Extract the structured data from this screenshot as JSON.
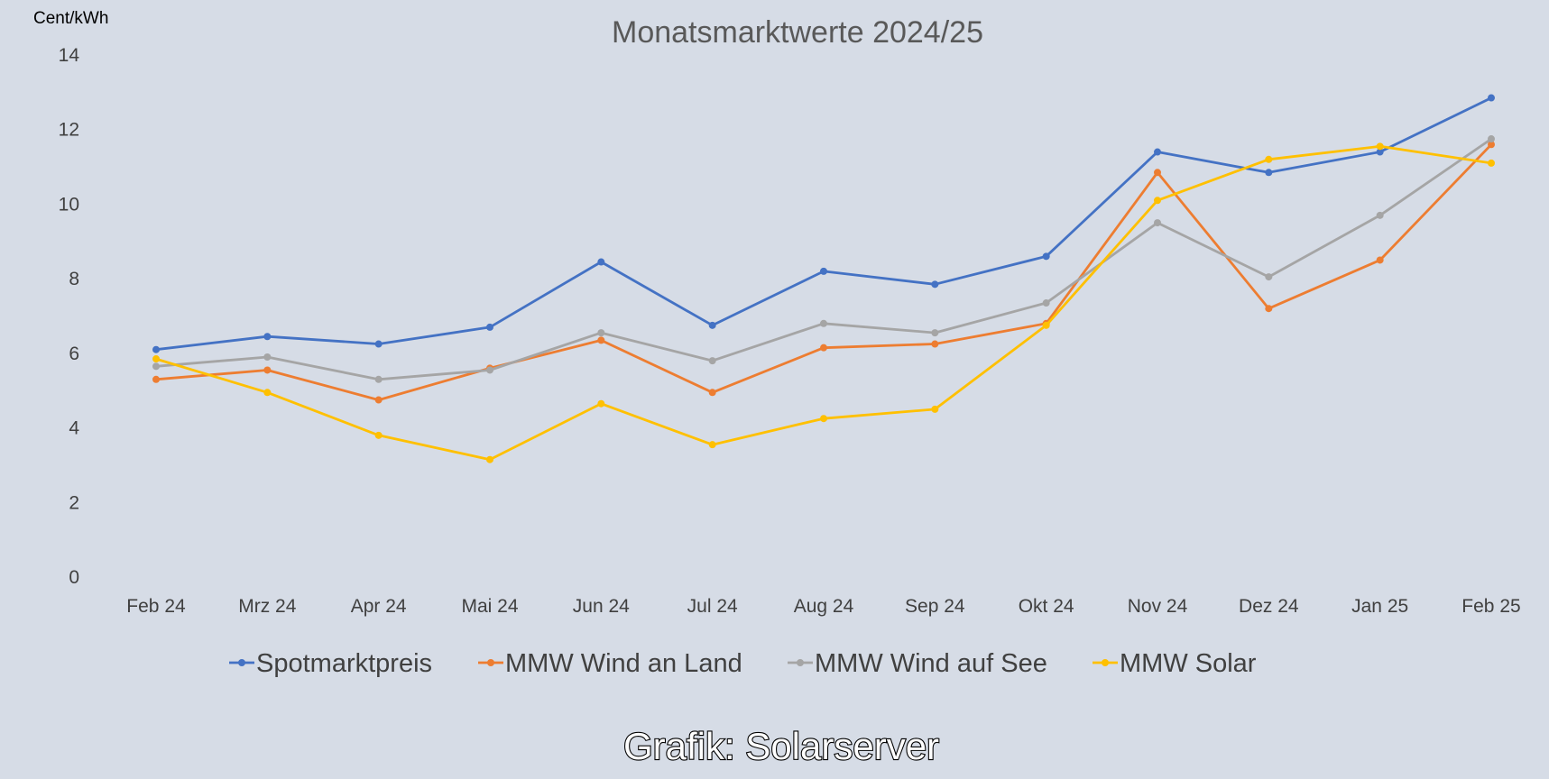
{
  "chart_data": {
    "type": "line",
    "title": "Monatsmarktwerte 2024/25",
    "unit_label": "Cent/kWh",
    "xlabel": "",
    "ylabel": "",
    "ylim": [
      0,
      14
    ],
    "yticks": [
      "0",
      "2",
      "4",
      "6",
      "8",
      "10",
      "12",
      "14"
    ],
    "grid": false,
    "legend_position": "bottom",
    "categories": [
      "Feb 24",
      "Mrz 24",
      "Apr 24",
      "Mai 24",
      "Jun 24",
      "Jul 24",
      "Aug 24",
      "Sep 24",
      "Okt 24",
      "Nov 24",
      "Dez 24",
      "Jan 25",
      "Feb 25"
    ],
    "series": [
      {
        "name": "Spotmarktpreis",
        "color": "#4472c4",
        "values": [
          6.1,
          6.45,
          6.25,
          6.7,
          8.45,
          6.75,
          8.2,
          7.85,
          8.6,
          11.4,
          10.85,
          11.4,
          12.85
        ]
      },
      {
        "name": "MMW Wind an Land",
        "color": "#ed7d31",
        "values": [
          5.3,
          5.55,
          4.75,
          5.6,
          6.35,
          4.95,
          6.15,
          6.25,
          6.8,
          10.85,
          7.2,
          8.5,
          11.6
        ]
      },
      {
        "name": "MMW Wind auf See",
        "color": "#a5a5a5",
        "values": [
          5.65,
          5.9,
          5.3,
          5.55,
          6.55,
          5.8,
          6.8,
          6.55,
          7.35,
          9.5,
          8.05,
          9.7,
          11.75
        ]
      },
      {
        "name": "MMW Solar",
        "color": "#ffc000",
        "values": [
          5.85,
          4.95,
          3.8,
          3.15,
          4.65,
          3.55,
          4.25,
          4.5,
          6.75,
          10.1,
          11.2,
          11.55,
          11.1
        ]
      }
    ]
  },
  "credit": "Grafik: Solarserver"
}
